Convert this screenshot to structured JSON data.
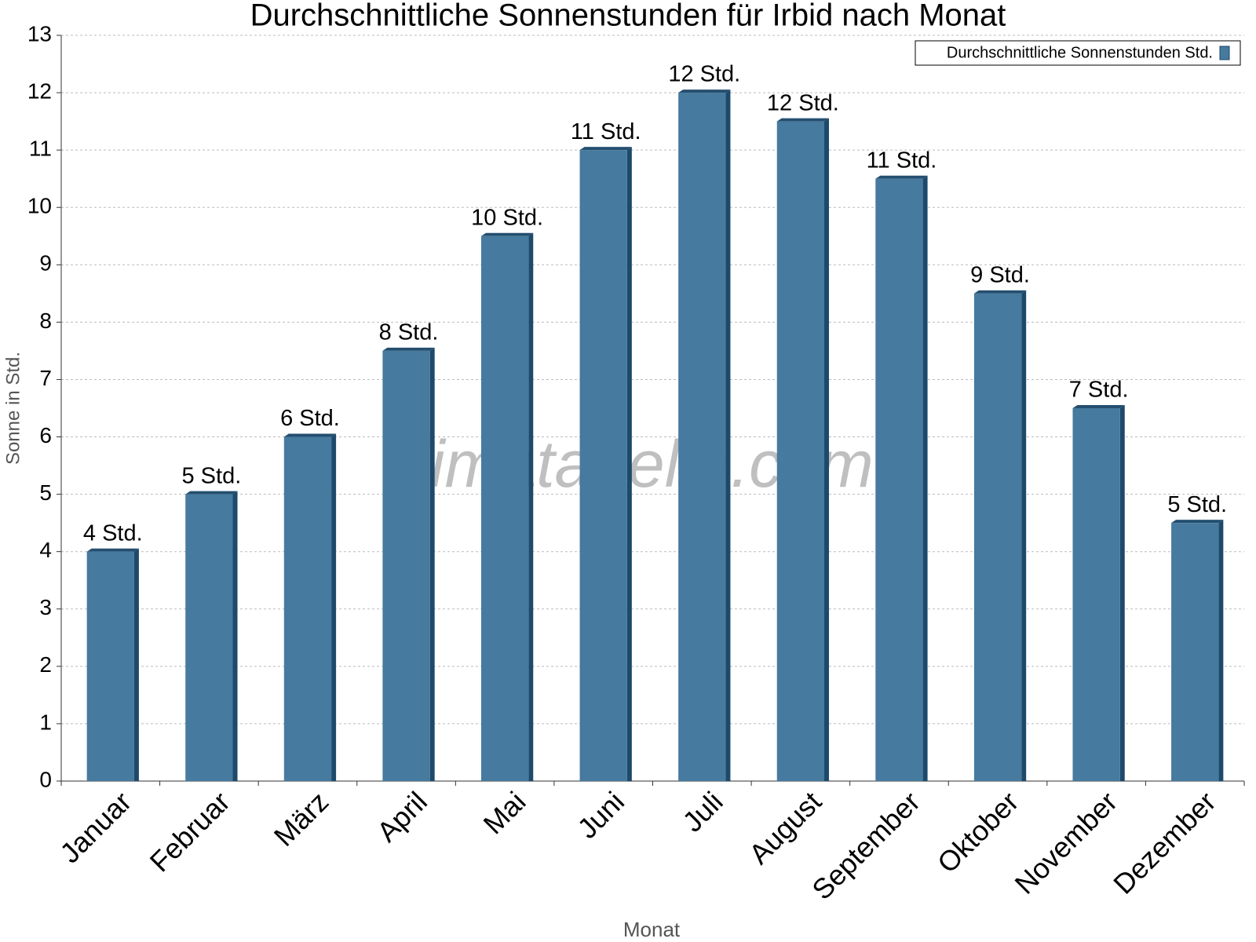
{
  "chart_data": {
    "type": "bar",
    "title": "Durchschnittliche Sonnenstunden für Irbid nach Monat",
    "x_label": "Monat",
    "y_label": "Sonne in Std.",
    "watermark": "klimatabelle.com",
    "categories": [
      "Januar",
      "Februar",
      "März",
      "April",
      "Mai",
      "Juni",
      "Juli",
      "August",
      "September",
      "Oktober",
      "November",
      "Dezember"
    ],
    "series": [
      {
        "name": "Durchschnittliche Sonnenstunden Std.",
        "color": "#467a9e",
        "values": [
          4,
          5,
          6,
          7.5,
          9.5,
          11,
          12,
          11.5,
          10.5,
          8.5,
          6.5,
          4.5
        ],
        "value_labels": [
          "4 Std.",
          "5 Std.",
          "6 Std.",
          "8 Std.",
          "10 Std.",
          "11 Std.",
          "12 Std.",
          "12 Std.",
          "11 Std.",
          "9 Std.",
          "7 Std.",
          "5 Std."
        ]
      }
    ],
    "ylim": [
      0,
      13
    ],
    "yticks": [
      0,
      1,
      2,
      3,
      4,
      5,
      6,
      7,
      8,
      9,
      10,
      11,
      12,
      13
    ],
    "grid": true,
    "legend": "top-right"
  }
}
